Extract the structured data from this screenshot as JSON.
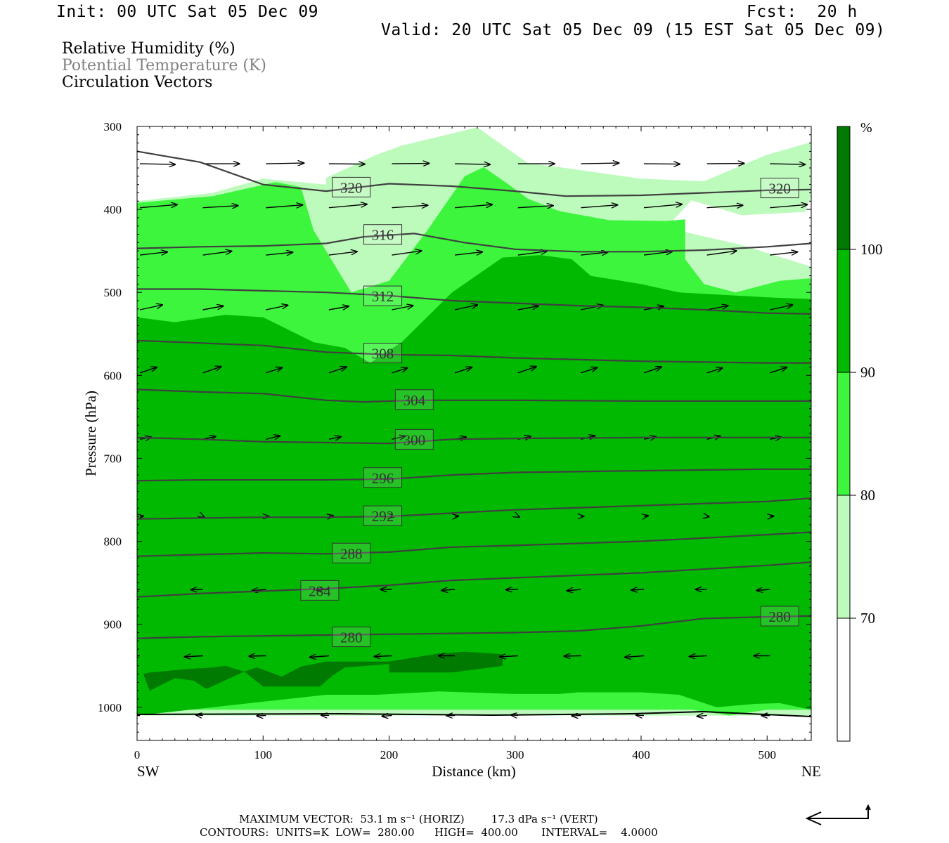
{
  "header": {
    "init": "Init: 00 UTC Sat 05 Dec 09",
    "fcst": "Fcst:  20 h",
    "valid": "Valid: 20 UTC Sat 05 Dec 09 (15 EST Sat 05 Dec 09)"
  },
  "fields": [
    {
      "label": "Relative Humidity (%)",
      "color": "#000000"
    },
    {
      "label": "Potential Temperature (K)",
      "color": "#808080"
    },
    {
      "label": "Circulation Vectors",
      "color": "#000000"
    }
  ],
  "colors": {
    "rh_70_80": "#bdfbbd",
    "rh_80_90": "#3df53d",
    "rh_90_100": "#00b900",
    "rh_100": "#007a00",
    "contour": "#404040"
  },
  "chart_data": {
    "type": "cross-section",
    "xlabel": "Distance (km)",
    "ylabel": "Pressure (hPa)",
    "x_ticks": [
      0,
      100,
      200,
      300,
      400,
      500
    ],
    "xlim": [
      0,
      535
    ],
    "y_ticks": [
      300,
      400,
      500,
      600,
      700,
      800,
      900,
      1000
    ],
    "ylim": [
      1040,
      300
    ],
    "x_end_labels": {
      "left": "SW",
      "right": "NE"
    },
    "colorbar": {
      "unit": "%",
      "levels": [
        70,
        80,
        90,
        100
      ]
    },
    "theta_contours": [
      {
        "value": 320,
        "labels": [
          {
            "x": 170,
            "p": 374
          },
          {
            "x": 510,
            "p": 375
          }
        ],
        "points": [
          [
            0,
            330
          ],
          [
            50,
            343
          ],
          [
            100,
            370
          ],
          [
            150,
            378
          ],
          [
            200,
            369
          ],
          [
            250,
            372
          ],
          [
            300,
            378
          ],
          [
            340,
            384
          ],
          [
            400,
            383
          ],
          [
            450,
            380
          ],
          [
            500,
            377
          ],
          [
            535,
            376
          ]
        ]
      },
      {
        "value": 316,
        "labels": [
          {
            "x": 195,
            "p": 431
          }
        ],
        "points": [
          [
            0,
            447
          ],
          [
            50,
            445
          ],
          [
            100,
            444
          ],
          [
            150,
            441
          ],
          [
            180,
            433
          ],
          [
            220,
            429
          ],
          [
            260,
            440
          ],
          [
            300,
            448
          ],
          [
            350,
            451
          ],
          [
            400,
            451
          ],
          [
            450,
            449
          ],
          [
            500,
            445
          ],
          [
            535,
            441
          ]
        ]
      },
      {
        "value": 312,
        "labels": [
          {
            "x": 195,
            "p": 505
          }
        ],
        "points": [
          [
            0,
            496
          ],
          [
            50,
            496
          ],
          [
            100,
            498
          ],
          [
            150,
            500
          ],
          [
            200,
            504
          ],
          [
            250,
            510
          ],
          [
            300,
            513
          ],
          [
            350,
            516
          ],
          [
            400,
            518
          ],
          [
            450,
            521
          ],
          [
            500,
            525
          ],
          [
            535,
            526
          ]
        ]
      },
      {
        "value": 308,
        "labels": [
          {
            "x": 195,
            "p": 574
          }
        ],
        "points": [
          [
            0,
            558
          ],
          [
            50,
            561
          ],
          [
            100,
            564
          ],
          [
            150,
            572
          ],
          [
            200,
            575
          ],
          [
            250,
            576
          ],
          [
            300,
            579
          ],
          [
            350,
            581
          ],
          [
            400,
            583
          ],
          [
            450,
            584
          ],
          [
            500,
            585
          ],
          [
            535,
            585
          ]
        ]
      },
      {
        "value": 304,
        "labels": [
          {
            "x": 220,
            "p": 630
          }
        ],
        "points": [
          [
            0,
            617
          ],
          [
            50,
            620
          ],
          [
            100,
            622
          ],
          [
            150,
            630
          ],
          [
            180,
            632
          ],
          [
            220,
            630
          ],
          [
            300,
            630
          ],
          [
            400,
            631
          ],
          [
            535,
            631
          ]
        ]
      },
      {
        "value": 300,
        "labels": [
          {
            "x": 220,
            "p": 678
          }
        ],
        "points": [
          [
            0,
            675
          ],
          [
            50,
            677
          ],
          [
            100,
            680
          ],
          [
            150,
            681
          ],
          [
            200,
            682
          ],
          [
            250,
            677
          ],
          [
            300,
            676
          ],
          [
            400,
            675
          ],
          [
            500,
            675
          ],
          [
            535,
            675
          ]
        ]
      },
      {
        "value": 296,
        "labels": [
          {
            "x": 195,
            "p": 724
          }
        ],
        "points": [
          [
            0,
            727
          ],
          [
            50,
            726
          ],
          [
            100,
            726
          ],
          [
            150,
            726
          ],
          [
            200,
            725
          ],
          [
            250,
            720
          ],
          [
            300,
            717
          ],
          [
            400,
            715
          ],
          [
            500,
            713
          ],
          [
            535,
            713
          ]
        ]
      },
      {
        "value": 292,
        "labels": [
          {
            "x": 195,
            "p": 770
          }
        ],
        "points": [
          [
            0,
            773
          ],
          [
            50,
            772
          ],
          [
            100,
            771
          ],
          [
            150,
            771
          ],
          [
            200,
            770
          ],
          [
            250,
            766
          ],
          [
            300,
            762
          ],
          [
            400,
            757
          ],
          [
            500,
            752
          ],
          [
            535,
            748
          ]
        ]
      },
      {
        "value": 288,
        "labels": [
          {
            "x": 170,
            "p": 815
          }
        ],
        "points": [
          [
            0,
            818
          ],
          [
            50,
            816
          ],
          [
            100,
            814
          ],
          [
            150,
            815
          ],
          [
            200,
            813
          ],
          [
            250,
            807
          ],
          [
            300,
            805
          ],
          [
            400,
            800
          ],
          [
            500,
            792
          ],
          [
            535,
            789
          ]
        ]
      },
      {
        "value": 284,
        "labels": [
          {
            "x": 145,
            "p": 860
          }
        ],
        "points": [
          [
            0,
            867
          ],
          [
            50,
            863
          ],
          [
            100,
            860
          ],
          [
            150,
            857
          ],
          [
            200,
            853
          ],
          [
            250,
            847
          ],
          [
            300,
            844
          ],
          [
            400,
            838
          ],
          [
            500,
            829
          ],
          [
            535,
            825
          ]
        ]
      },
      {
        "value": 280,
        "labels": [
          {
            "x": 170,
            "p": 916
          },
          {
            "x": 510,
            "p": 891
          }
        ],
        "points": [
          [
            0,
            917
          ],
          [
            50,
            915
          ],
          [
            100,
            914
          ],
          [
            150,
            913
          ],
          [
            200,
            912
          ],
          [
            250,
            911
          ],
          [
            300,
            910
          ],
          [
            350,
            908
          ],
          [
            400,
            902
          ],
          [
            450,
            893
          ],
          [
            500,
            891
          ],
          [
            535,
            890
          ]
        ]
      }
    ],
    "rh_regions": [
      {
        "level": "70-80",
        "points": [
          [
            0,
            390
          ],
          [
            60,
            380
          ],
          [
            100,
            363
          ],
          [
            150,
            370
          ],
          [
            150,
            362
          ],
          [
            190,
            334
          ],
          [
            210,
            323
          ],
          [
            270,
            301
          ],
          [
            310,
            344
          ],
          [
            340,
            350
          ],
          [
            400,
            363
          ],
          [
            450,
            366
          ],
          [
            500,
            334
          ],
          [
            535,
            319
          ],
          [
            535,
            384
          ],
          [
            530,
            403
          ],
          [
            480,
            407
          ],
          [
            440,
            389
          ],
          [
            420,
            422
          ],
          [
            480,
            443
          ],
          [
            535,
            469
          ],
          [
            535,
            1010
          ],
          [
            0,
            1010
          ]
        ]
      },
      {
        "level": "80-90",
        "points": [
          [
            0,
            392
          ],
          [
            60,
            384
          ],
          [
            110,
            367
          ],
          [
            130,
            373
          ],
          [
            140,
            425
          ],
          [
            170,
            500
          ],
          [
            200,
            486
          ],
          [
            230,
            426
          ],
          [
            260,
            360
          ],
          [
            275,
            349
          ],
          [
            295,
            370
          ],
          [
            310,
            387
          ],
          [
            335,
            402
          ],
          [
            375,
            413
          ],
          [
            420,
            414
          ],
          [
            435,
            412
          ],
          [
            435,
            460
          ],
          [
            450,
            490
          ],
          [
            475,
            500
          ],
          [
            510,
            486
          ],
          [
            535,
            483
          ],
          [
            535,
            1003
          ],
          [
            520,
            1003
          ],
          [
            500,
            1003
          ],
          [
            470,
            1010
          ],
          [
            440,
            1003
          ],
          [
            0,
            1003
          ]
        ]
      },
      {
        "level": "90-100",
        "points": [
          [
            0,
            530
          ],
          [
            30,
            536
          ],
          [
            70,
            527
          ],
          [
            100,
            530
          ],
          [
            140,
            560
          ],
          [
            165,
            567
          ],
          [
            185,
            585
          ],
          [
            210,
            560
          ],
          [
            250,
            500
          ],
          [
            290,
            458
          ],
          [
            320,
            455
          ],
          [
            345,
            460
          ],
          [
            360,
            480
          ],
          [
            400,
            490
          ],
          [
            430,
            500
          ],
          [
            500,
            506
          ],
          [
            535,
            508
          ],
          [
            535,
            1003
          ],
          [
            510,
            995
          ],
          [
            490,
            996
          ],
          [
            460,
            1000
          ],
          [
            430,
            985
          ],
          [
            400,
            982
          ],
          [
            350,
            982
          ],
          [
            335,
            984
          ],
          [
            300,
            984
          ],
          [
            240,
            981
          ],
          [
            190,
            985
          ],
          [
            150,
            985
          ],
          [
            0,
            1010
          ]
        ]
      },
      {
        "level": "100+",
        "points": [
          [
            5,
            960
          ],
          [
            10,
            980
          ],
          [
            30,
            965
          ],
          [
            45,
            968
          ],
          [
            55,
            978
          ],
          [
            85,
            957
          ],
          [
            100,
            975
          ],
          [
            145,
            975
          ],
          [
            155,
            962
          ],
          [
            165,
            952
          ],
          [
            200,
            948
          ],
          [
            200,
            958
          ],
          [
            250,
            958
          ],
          [
            280,
            952
          ],
          [
            290,
            950
          ],
          [
            290,
            936
          ],
          [
            260,
            933
          ],
          [
            240,
            935
          ],
          [
            200,
            945
          ],
          [
            150,
            945
          ],
          [
            130,
            951
          ],
          [
            115,
            963
          ],
          [
            95,
            952
          ],
          [
            85,
            957
          ],
          [
            70,
            950
          ],
          [
            60,
            952
          ],
          [
            40,
            954
          ],
          [
            10,
            958
          ]
        ]
      }
    ],
    "maximum_vector": "MAXIMUM VECTOR:  53.1 m s⁻¹ (HORIZ)        17.3 dPa s⁻¹ (VERT)",
    "contours_info": "CONTOURS:  UNITS=K  LOW=  280.00      HIGH=  400.00       INTERVAL=    4.0000"
  }
}
